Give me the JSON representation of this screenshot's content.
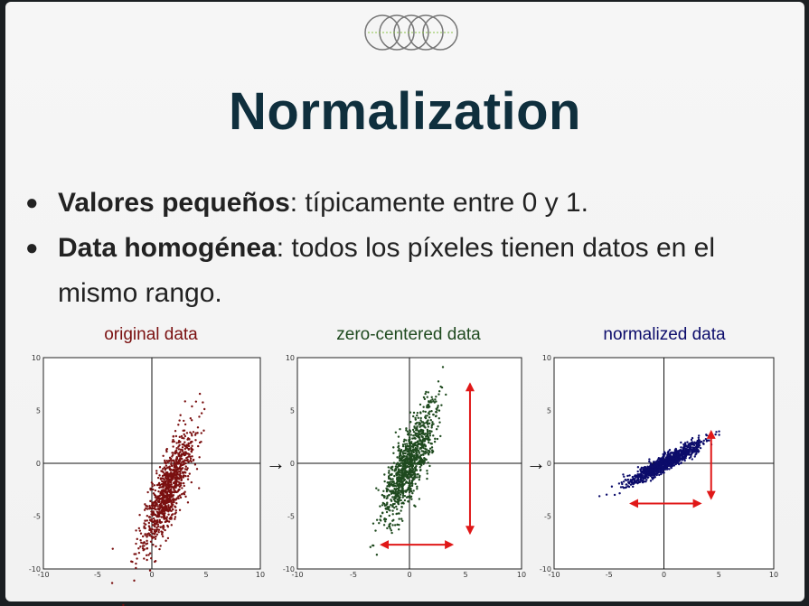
{
  "slide": {
    "title": "Normalization",
    "bullets": [
      {
        "bold": "Valores pequeños",
        "rest": ": típicamente entre 0 y 1."
      },
      {
        "bold": "Data homogénea",
        "rest": ": todos los píxeles tienen datos en el mismo rango."
      }
    ]
  },
  "chart_data": [
    {
      "type": "scatter",
      "title": "original data",
      "color": "#7a1010",
      "xlim": [
        -10,
        10
      ],
      "ylim": [
        -10,
        10
      ],
      "xticks": [
        "-10",
        "-5",
        "0",
        "5",
        "10"
      ],
      "yticks": [
        "10",
        "5",
        "0",
        "-5",
        "-10"
      ],
      "center": [
        1.5,
        -2.5
      ],
      "spread": [
        1.5,
        3.2
      ],
      "angle_deg": 70,
      "n_points": 1000
    },
    {
      "type": "scatter",
      "title": "zero-centered data",
      "color": "#1f4a1f",
      "xlim": [
        -10,
        10
      ],
      "ylim": [
        -10,
        10
      ],
      "xticks": [
        "-10",
        "-5",
        "0",
        "5",
        "10"
      ],
      "yticks": [
        "10",
        "5",
        "0",
        "-5",
        "-10"
      ],
      "center": [
        0,
        0
      ],
      "spread": [
        1.5,
        3.2
      ],
      "angle_deg": 70,
      "n_points": 1000,
      "arrow_h": [
        -2.5,
        3.8,
        -7.7
      ],
      "arrow_v": [
        5.4,
        7.5,
        -6.6
      ]
    },
    {
      "type": "scatter",
      "title": "normalized data",
      "color": "#0c0c6b",
      "xlim": [
        -10,
        10
      ],
      "ylim": [
        -10,
        10
      ],
      "xticks": [
        "-10",
        "-5",
        "0",
        "5",
        "10"
      ],
      "yticks": [
        "10",
        "5",
        "0",
        "-5",
        "-10"
      ],
      "center": [
        0,
        0
      ],
      "spread": [
        0.7,
        2.2
      ],
      "angle_deg": 30,
      "n_points": 1000,
      "arrow_h": [
        -3.0,
        3.3,
        -3.8
      ],
      "arrow_v": [
        4.3,
        3.0,
        -3.3
      ]
    }
  ],
  "between_arrows": [
    "→",
    "→"
  ]
}
